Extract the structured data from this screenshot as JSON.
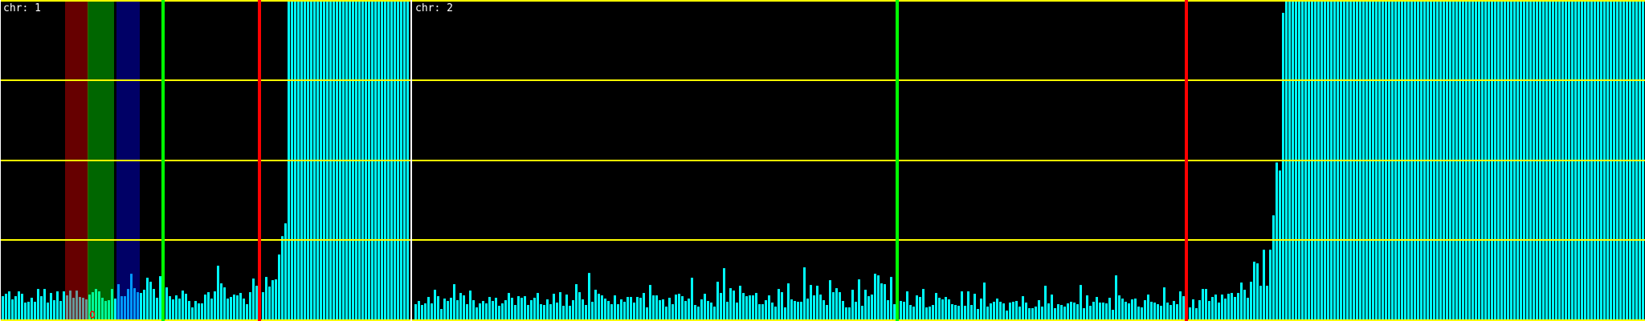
{
  "chart_data": {
    "type": "bar",
    "ylim": [
      0,
      4
    ],
    "grid": {
      "horizontal": true,
      "values": [
        0,
        1,
        2,
        3,
        4
      ],
      "color": "#ffff00"
    },
    "colors": {
      "bars": "#00ffff",
      "background": "#000000",
      "divider": "#ffffff",
      "green_marker": "#00ff00",
      "red_marker": "#ff0000",
      "circle_marker": "#ff0000"
    },
    "panels": [
      {
        "label": "chr: 1",
        "bins": 127,
        "values": [
          0.3,
          0.33,
          0.36,
          0.26,
          0.3,
          0.36,
          0.33,
          0.22,
          0.23,
          0.28,
          0.23,
          0.39,
          0.3,
          0.39,
          0.22,
          0.34,
          0.25,
          0.36,
          0.24,
          0.36,
          0.31,
          0.37,
          0.28,
          0.37,
          0.29,
          0.28,
          0.26,
          0.32,
          0.35,
          0.39,
          0.36,
          0.28,
          0.24,
          0.25,
          0.39,
          0.27,
          0.45,
          0.3,
          0.3,
          0.39,
          0.58,
          0.4,
          0.35,
          0.34,
          0.38,
          0.53,
          0.48,
          0.39,
          0.28,
          0.55,
          0.32,
          0.41,
          0.3,
          0.26,
          0.31,
          0.27,
          0.37,
          0.33,
          0.24,
          0.16,
          0.24,
          0.21,
          0.21,
          0.32,
          0.35,
          0.27,
          0.36,
          0.68,
          0.46,
          0.41,
          0.27,
          0.29,
          0.32,
          0.31,
          0.34,
          0.27,
          0.2,
          0.35,
          0.52,
          0.43,
          0.34,
          0.35,
          0.54,
          0.42,
          0.5,
          0.51,
          0.82,
          1.05,
          1.21,
          4,
          4,
          4,
          4,
          4,
          4,
          4,
          4,
          4,
          4,
          4,
          4,
          4,
          4,
          4,
          4,
          4,
          4,
          4,
          4,
          4,
          4,
          4,
          4,
          4,
          4,
          4,
          4,
          4,
          4,
          4,
          4,
          4,
          4,
          4,
          4,
          4,
          4
        ],
        "bands": [
          {
            "color": "#ff0000",
            "from_bin": 20,
            "to_bin": 26
          },
          {
            "color": "#00ff00",
            "from_bin": 27,
            "to_bin": 34
          },
          {
            "color": "#0000ff",
            "from_bin": 36,
            "to_bin": 42
          }
        ],
        "markers": [
          {
            "color": "#00ff00",
            "bin": 50
          },
          {
            "color": "#ff0000",
            "bin": 80
          }
        ],
        "circle_marker_bin": 28
      },
      {
        "label": "chr: 2",
        "bins": 383,
        "values": [
          0.2,
          0.24,
          0.19,
          0.21,
          0.29,
          0.21,
          0.38,
          0.3,
          0.14,
          0.27,
          0.24,
          0.28,
          0.45,
          0.25,
          0.34,
          0.31,
          0.2,
          0.37,
          0.25,
          0.16,
          0.21,
          0.24,
          0.21,
          0.29,
          0.24,
          0.28,
          0.18,
          0.21,
          0.25,
          0.34,
          0.28,
          0.19,
          0.3,
          0.28,
          0.3,
          0.19,
          0.25,
          0.28,
          0.34,
          0.2,
          0.19,
          0.26,
          0.2,
          0.33,
          0.22,
          0.35,
          0.18,
          0.32,
          0.18,
          0.25,
          0.45,
          0.35,
          0.26,
          0.19,
          0.59,
          0.23,
          0.38,
          0.33,
          0.31,
          0.27,
          0.24,
          0.2,
          0.31,
          0.2,
          0.26,
          0.23,
          0.29,
          0.29,
          0.22,
          0.29,
          0.28,
          0.34,
          0.16,
          0.44,
          0.31,
          0.31,
          0.25,
          0.26,
          0.17,
          0.28,
          0.2,
          0.32,
          0.33,
          0.3,
          0.24,
          0.27,
          0.53,
          0.19,
          0.17,
          0.26,
          0.33,
          0.24,
          0.22,
          0.17,
          0.48,
          0.34,
          0.65,
          0.23,
          0.4,
          0.37,
          0.22,
          0.43,
          0.34,
          0.3,
          0.31,
          0.31,
          0.34,
          0.2,
          0.2,
          0.25,
          0.31,
          0.22,
          0.17,
          0.39,
          0.35,
          0.16,
          0.46,
          0.26,
          0.24,
          0.23,
          0.23,
          0.66,
          0.27,
          0.44,
          0.31,
          0.43,
          0.32,
          0.25,
          0.19,
          0.5,
          0.35,
          0.4,
          0.35,
          0.24,
          0.16,
          0.16,
          0.38,
          0.23,
          0.51,
          0.18,
          0.38,
          0.3,
          0.32,
          0.58,
          0.56,
          0.46,
          0.45,
          0.25,
          0.54,
          0.2,
          0.22,
          0.24,
          0.23,
          0.36,
          0.19,
          0.17,
          0.31,
          0.29,
          0.39,
          0.16,
          0.17,
          0.19,
          0.34,
          0.28,
          0.26,
          0.29,
          0.26,
          0.2,
          0.19,
          0.18,
          0.36,
          0.18,
          0.36,
          0.19,
          0.33,
          0.14,
          0.27,
          0.47,
          0.17,
          0.21,
          0.23,
          0.27,
          0.23,
          0.21,
          0.12,
          0.22,
          0.23,
          0.24,
          0.17,
          0.3,
          0.22,
          0.15,
          0.15,
          0.17,
          0.25,
          0.17,
          0.43,
          0.21,
          0.32,
          0.15,
          0.2,
          0.19,
          0.17,
          0.21,
          0.23,
          0.22,
          0.2,
          0.44,
          0.15,
          0.31,
          0.18,
          0.23,
          0.29,
          0.22,
          0.22,
          0.21,
          0.28,
          0.13,
          0.56,
          0.31,
          0.27,
          0.23,
          0.21,
          0.26,
          0.27,
          0.17,
          0.16,
          0.25,
          0.32,
          0.23,
          0.22,
          0.2,
          0.18,
          0.41,
          0.22,
          0.19,
          0.24,
          0.2,
          0.36,
          0.3,
          0.25,
          0.16,
          0.26,
          0.15,
          0.25,
          0.39,
          0.39,
          0.24,
          0.29,
          0.32,
          0.22,
          0.32,
          0.27,
          0.33,
          0.34,
          0.29,
          0.34,
          0.47,
          0.38,
          0.28,
          0.48,
          0.73,
          0.71,
          0.43,
          0.88,
          0.43,
          0.88,
          1.31,
          1.97,
          1.87,
          3.84,
          4,
          4,
          4,
          4,
          4,
          4,
          4,
          4,
          4,
          4,
          4,
          4,
          4,
          4,
          4,
          4,
          4,
          4,
          4,
          4,
          4,
          4,
          4,
          4,
          4,
          4,
          4,
          4,
          4,
          4,
          4,
          4,
          4,
          4,
          4,
          4,
          4,
          4,
          4,
          4,
          4,
          4,
          4,
          4,
          4,
          4,
          4,
          4,
          4,
          4,
          4,
          4,
          4,
          4,
          4,
          4,
          4,
          4,
          4,
          4,
          4,
          4,
          4,
          4,
          4,
          4,
          4,
          4,
          4,
          4,
          4,
          4,
          4,
          4,
          4,
          4,
          4,
          4,
          4,
          4,
          4,
          4,
          4,
          4,
          4,
          4,
          4,
          4,
          4,
          4,
          4,
          4,
          4,
          4,
          4,
          4,
          4,
          4,
          4,
          4,
          4,
          4,
          4,
          4,
          4,
          4,
          4,
          4,
          4,
          4,
          4,
          4
        ],
        "bands": [],
        "markers": [
          {
            "color": "#00ff00",
            "bin": 150
          },
          {
            "color": "#ff0000",
            "bin": 240
          }
        ]
      }
    ]
  }
}
